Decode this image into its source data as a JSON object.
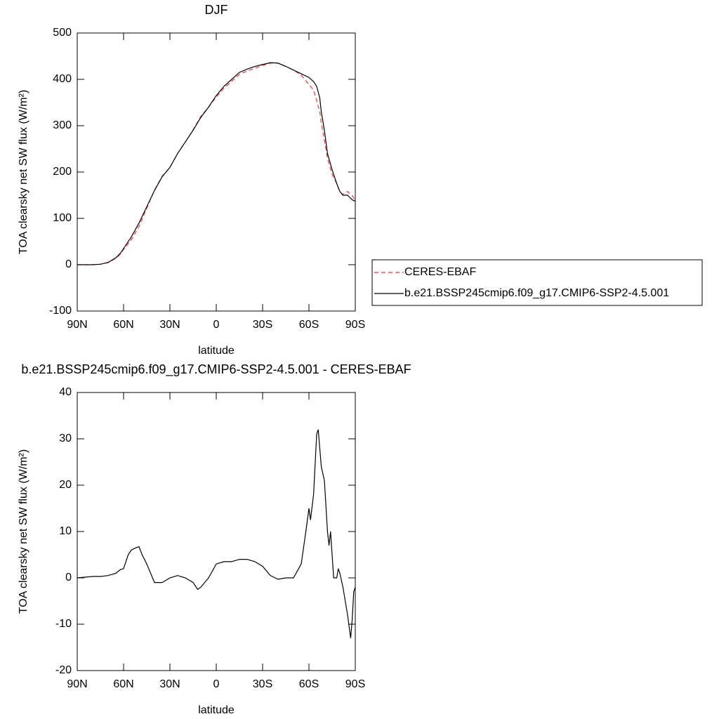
{
  "chart_data": [
    {
      "type": "line",
      "title": "DJF",
      "xlabel": "latitude",
      "ylabel": "TOA clearsky net SW flux (W/m²)",
      "x": [
        90,
        80,
        75,
        70,
        65,
        62,
        60,
        55,
        50,
        45,
        40,
        35,
        30,
        25,
        20,
        15,
        10,
        5,
        0,
        -5,
        -10,
        -15,
        -20,
        -25,
        -30,
        -35,
        -40,
        -45,
        -50,
        -55,
        -60,
        -63,
        -65,
        -67,
        -68,
        -70,
        -72,
        -75,
        -78,
        -80,
        -82,
        -85,
        -88,
        -90
      ],
      "series": [
        {
          "name": "CERES-EBAF",
          "color": "#ff3333",
          "style": "dashed",
          "values": [
            0,
            0,
            1,
            4.5,
            14,
            23,
            33,
            54,
            83,
            122,
            161,
            191,
            210,
            240,
            265,
            291,
            320,
            340,
            362,
            381,
            396,
            411,
            418,
            424,
            430,
            435,
            435,
            428,
            420,
            409,
            389,
            377,
            354,
            330,
            306,
            269,
            230,
            195,
            175,
            157,
            152,
            158,
            149,
            139
          ]
        },
        {
          "name": "b.e21.BSSP245cmip6.f09_g17.CMIP6-SSP2-4.5.001",
          "color": "#000000",
          "style": "solid",
          "values": [
            0,
            0,
            1,
            5,
            15,
            25,
            35,
            60,
            90,
            125,
            160,
            190,
            210,
            240,
            265,
            290,
            318,
            340,
            365,
            385,
            400,
            415,
            422,
            428,
            432,
            436,
            435,
            428,
            420,
            412,
            404,
            395,
            385,
            360,
            330,
            290,
            240,
            205,
            175,
            158,
            150,
            150,
            140,
            137
          ]
        }
      ],
      "xlim": [
        90,
        -90
      ],
      "xticks": [
        {
          "value": 90,
          "label": "90N"
        },
        {
          "value": 60,
          "label": "60N"
        },
        {
          "value": 30,
          "label": "30N"
        },
        0,
        {
          "value": -30,
          "label": "30S"
        },
        {
          "value": -60,
          "label": "60S"
        },
        {
          "value": -90,
          "label": "90S"
        }
      ],
      "ylim": [
        -100,
        500
      ],
      "yticks": [
        -100,
        0,
        100,
        200,
        300,
        400,
        500
      ],
      "legend": "right"
    },
    {
      "type": "line",
      "title": "b.e21.BSSP245cmip6.f09_g17.CMIP6-SSP2-4.5.001 - CERES-EBAF",
      "xlabel": "latitude",
      "ylabel": "TOA clearsky net SW flux (W/m²)",
      "x": [
        90,
        80,
        75,
        70,
        65,
        62,
        60,
        57,
        55,
        52,
        50,
        48,
        45,
        40,
        35,
        30,
        25,
        20,
        15,
        12,
        10,
        5,
        0,
        -5,
        -10,
        -15,
        -20,
        -25,
        -30,
        -35,
        -40,
        -45,
        -50,
        -55,
        -58,
        -60,
        -61,
        -63,
        -65,
        -66,
        -68,
        -70,
        -72,
        -73,
        -74,
        -76,
        -78,
        -79,
        -80,
        -82,
        -85,
        -87,
        -88,
        -89,
        -90
      ],
      "series": [
        {
          "color": "#000000",
          "style": "solid",
          "values": [
            0,
            0.3,
            0.3,
            0.5,
            1,
            1.8,
            2,
            5,
            6,
            6.5,
            6.7,
            5,
            3,
            -1,
            -1,
            0,
            0.5,
            0,
            -1,
            -2.5,
            -2,
            0,
            3,
            3.5,
            3.5,
            4,
            4,
            3.5,
            2.5,
            0.5,
            -0.3,
            0,
            0,
            3,
            10,
            15,
            12.5,
            18,
            31,
            32,
            24,
            21,
            10,
            7,
            10,
            0,
            0,
            2,
            1,
            -2,
            -8,
            -13,
            -9,
            -3,
            -2
          ]
        }
      ],
      "xlim": [
        90,
        -90
      ],
      "xticks": [
        {
          "value": 90,
          "label": "90N"
        },
        {
          "value": 60,
          "label": "60N"
        },
        {
          "value": 30,
          "label": "30N"
        },
        0,
        {
          "value": -30,
          "label": "30S"
        },
        {
          "value": -60,
          "label": "60S"
        },
        {
          "value": -90,
          "label": "90S"
        }
      ],
      "ylim": [
        -20,
        40
      ],
      "yticks": [
        -20,
        -10,
        0,
        10,
        20,
        30,
        40
      ]
    }
  ]
}
